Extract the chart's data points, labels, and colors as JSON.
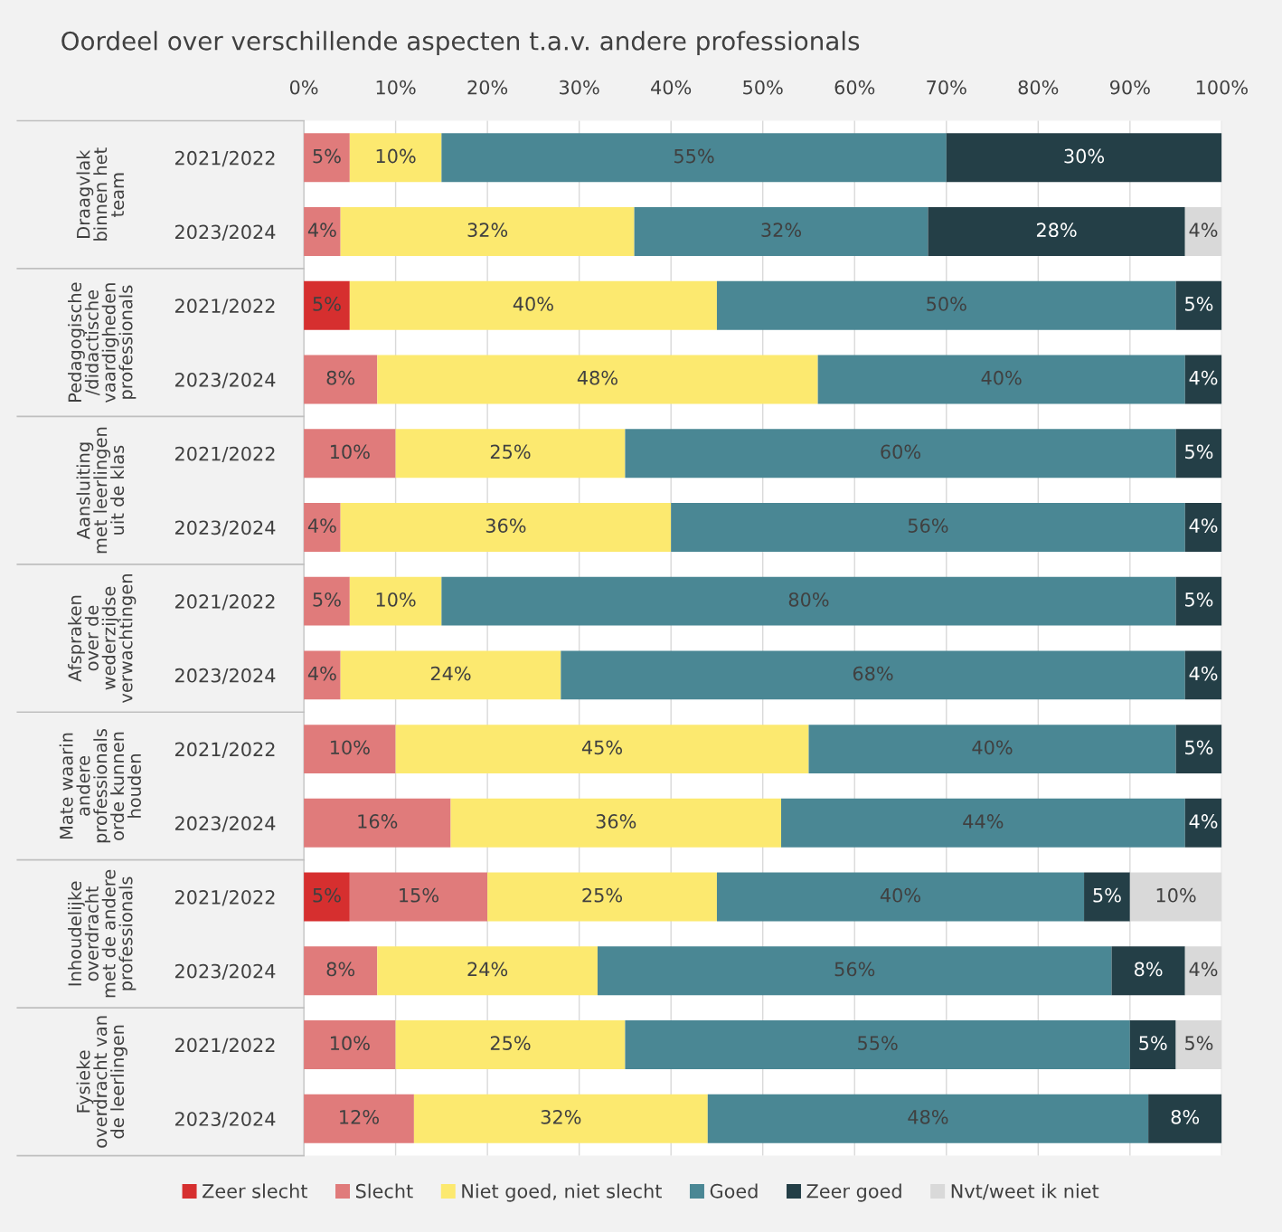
{
  "chart_data": {
    "type": "bar",
    "orientation": "horizontal",
    "stacked": true,
    "title": "Oordeel over verschillende aspecten t.a.v. andere professionals",
    "categories": [
      "2021/2022",
      "2023/2024",
      "2021/2022",
      "2023/2024",
      "2021/2022",
      "2023/2024",
      "2021/2022",
      "2023/2024",
      "2021/2022",
      "2023/2024",
      "2021/2022",
      "2023/2024",
      "2021/2022",
      "2023/2024"
    ],
    "annotations": [
      "Draagvlak\nbinnen het\nteam",
      "Pedagogische\n/didactische\nvaardigheden\nprofessionals",
      "Aansluiting\nmet leerlingen\nuit de klas",
      "Afspraken\nover de\nwederzijdse\nverwachtingen",
      "Mate waarin\nandere\nprofessionals\norde kunnen\nhouden",
      "Inhoudelijke\noverdracht\nmet de andere\nprofessionals",
      "Fysieke\noverdracht van\nde leerlingen"
    ],
    "series": [
      {
        "name": "Zeer slecht",
        "color": "#d62f2f",
        "values": [
          null,
          null,
          5,
          null,
          null,
          null,
          null,
          null,
          null,
          null,
          5,
          null,
          null,
          null
        ],
        "value_labels": [
          null,
          null,
          "5%",
          null,
          null,
          null,
          null,
          null,
          null,
          null,
          "5%",
          null,
          null,
          null
        ]
      },
      {
        "name": "Slecht",
        "color": "#e07b7b",
        "values": [
          5,
          4,
          null,
          8,
          10,
          4,
          5,
          4,
          10,
          16,
          15,
          8,
          10,
          12
        ],
        "value_labels": [
          "5%",
          "4%",
          null,
          "8%",
          "10%",
          "4%",
          "5%",
          "4%",
          "10%",
          "16%",
          "15%",
          "8%",
          "10%",
          "12%"
        ]
      },
      {
        "name": "Niet goed, niet slecht",
        "color": "#fce96f",
        "values": [
          10,
          32,
          40,
          48,
          25,
          36,
          10,
          24,
          45,
          36,
          25,
          24,
          25,
          32
        ],
        "value_labels": [
          "10%",
          "32%",
          "40%",
          "48%",
          "25%",
          "36%",
          "10%",
          "24%",
          "45%",
          "36%",
          "25%",
          "24%",
          "25%",
          "32%"
        ]
      },
      {
        "name": "Goed",
        "color": "#4a8794",
        "values": [
          55,
          32,
          50,
          40,
          60,
          56,
          80,
          68,
          40,
          44,
          40,
          56,
          55,
          48
        ],
        "value_labels": [
          "55%",
          "32%",
          "50%",
          "40%",
          "60%",
          "56%",
          "80%",
          "68%",
          "40%",
          "44%",
          "40%",
          "56%",
          "55%",
          "48%"
        ]
      },
      {
        "name": "Zeer goed",
        "color": "#243f47",
        "values": [
          30,
          28,
          5,
          4,
          5,
          4,
          5,
          4,
          5,
          4,
          5,
          8,
          5,
          8
        ],
        "value_labels": [
          "30%",
          "28%",
          "5%",
          "4%",
          "5%",
          "4%",
          "5%",
          "4%",
          "5%",
          "4%",
          "5%",
          "8%",
          "5%",
          "8%"
        ]
      },
      {
        "name": "Nvt/weet ik niet",
        "color": "#d9d9d9",
        "values": [
          null,
          4,
          null,
          null,
          null,
          null,
          null,
          null,
          null,
          null,
          10,
          4,
          5,
          null
        ],
        "value_labels": [
          null,
          "4%",
          null,
          null,
          null,
          null,
          null,
          null,
          null,
          null,
          "10%",
          "4%",
          "5%",
          null
        ]
      }
    ],
    "xlim": [
      0,
      100
    ],
    "xticks": [
      {
        "value": 0,
        "label": "0%"
      },
      {
        "value": 10,
        "label": "10%"
      },
      {
        "value": 20,
        "label": "20%"
      },
      {
        "value": 30,
        "label": "30%"
      },
      {
        "value": 40,
        "label": "40%"
      },
      {
        "value": 50,
        "label": "50%"
      },
      {
        "value": 60,
        "label": "60%"
      },
      {
        "value": 70,
        "label": "70%"
      },
      {
        "value": 80,
        "label": "80%"
      },
      {
        "value": 90,
        "label": "90%"
      },
      {
        "value": 100,
        "label": "100%"
      }
    ],
    "grid": "x",
    "legend": "bottom"
  }
}
